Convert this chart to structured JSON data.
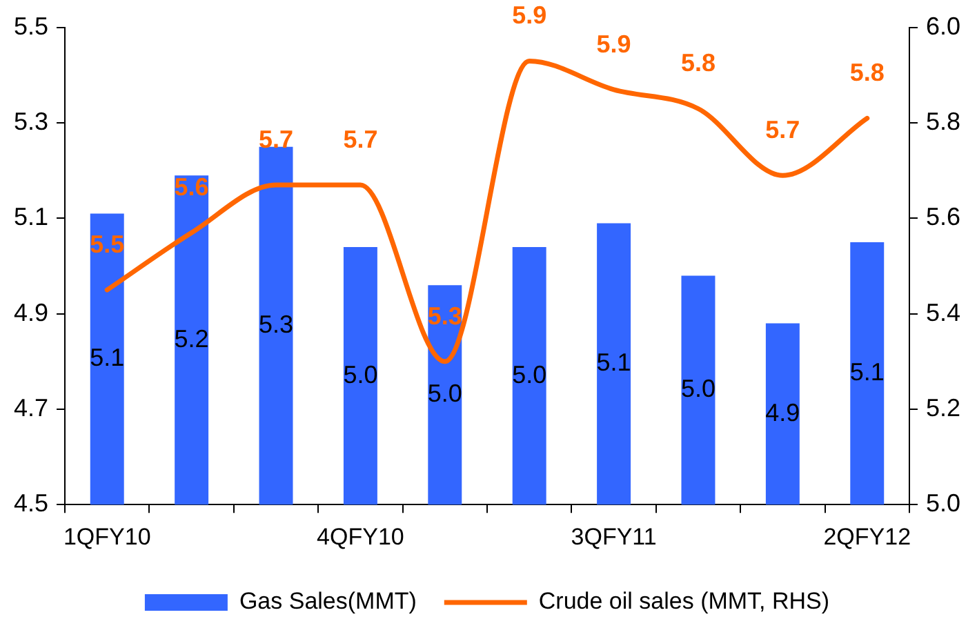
{
  "chart_data": {
    "type": "bar",
    "categories": [
      "1QFY10",
      null,
      null,
      "4QFY10",
      null,
      null,
      "3QFY11",
      null,
      null,
      "2QFY12"
    ],
    "series": [
      {
        "name": "Gas Sales(MMT)",
        "color": "#3366ff",
        "values": [
          5.11,
          5.19,
          5.25,
          5.04,
          4.96,
          5.04,
          5.09,
          4.98,
          4.88,
          5.05
        ],
        "value_labels": [
          "5.1",
          "5.2",
          "5.3",
          "5.0",
          "5.0",
          "5.0",
          "5.1",
          "5.0",
          "4.9",
          "5.1"
        ]
      },
      {
        "name": "Crude oil sales (MMT, RHS)",
        "type": "line",
        "axis": "y2",
        "color": "#ff6600",
        "values": [
          5.45,
          5.57,
          5.67,
          5.67,
          5.3,
          5.93,
          5.87,
          5.83,
          5.69,
          5.81
        ],
        "value_labels": [
          "5.5",
          "5.6",
          "5.7",
          "5.7",
          "5.3",
          "5.9",
          "5.9",
          "5.8",
          "5.7",
          "5.8"
        ]
      }
    ],
    "ylim": [
      4.5,
      5.5
    ],
    "yticks": [
      4.5,
      4.7,
      4.9,
      5.1,
      5.3,
      5.5
    ],
    "y2lim": [
      5.0,
      6.0
    ],
    "y2ticks": [
      {
        "value": 5.0,
        "label": "5.0"
      },
      5.2,
      5.4,
      5.6,
      5.8,
      {
        "value": 6.0,
        "label": "6.0"
      }
    ],
    "grid": false,
    "legend": "bottom"
  }
}
